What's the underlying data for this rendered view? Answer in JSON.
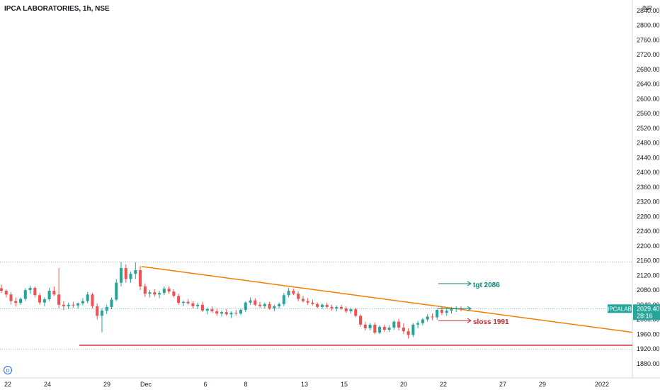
{
  "chart_data": {
    "type": "candlestick",
    "title": "IPCA LABORATORIES, 1h, NSE",
    "currency": "INR",
    "symbol": "IPCALAB",
    "last_price": "2029.40",
    "countdown": "28:16",
    "y_ticks": [
      "2840.00",
      "2800.00",
      "2760.00",
      "2720.00",
      "2680.00",
      "2640.00",
      "2600.00",
      "2560.00",
      "2520.00",
      "2480.00",
      "2440.00",
      "2400.00",
      "2360.00",
      "2320.00",
      "2280.00",
      "2240.00",
      "2200.00",
      "2160.00",
      "2120.00",
      "2080.00",
      "2040.00",
      "2000.00",
      "1960.00",
      "1920.00",
      "1880.00"
    ],
    "x_ticks": [
      "22",
      "24",
      "29",
      "Dec",
      "6",
      "8",
      "13",
      "15",
      "20",
      "22",
      "27",
      "29",
      "2022"
    ],
    "ylim": [
      1850,
      2850
    ],
    "annotations": {
      "target": "tgt 2086",
      "stoploss": "sloss 1991"
    },
    "levels": {
      "resistance_dotted": 2156,
      "support": 1928,
      "current": 2029.4
    },
    "trendline": {
      "from_price": 2144,
      "to_price": 1965
    },
    "colors": {
      "up": "#26a69a",
      "down": "#ef5350",
      "trendline": "#f57c00",
      "support": "#c62828",
      "target": "#00897b",
      "stoploss": "#c62828",
      "badge": "#26a69a"
    },
    "candles": [
      [
        2085,
        2095,
        2072,
        2078
      ],
      [
        2078,
        2082,
        2060,
        2068
      ],
      [
        2068,
        2075,
        2040,
        2050
      ],
      [
        2050,
        2060,
        2035,
        2045
      ],
      [
        2045,
        2060,
        2040,
        2056
      ],
      [
        2056,
        2085,
        2050,
        2080
      ],
      [
        2080,
        2092,
        2070,
        2086
      ],
      [
        2086,
        2090,
        2060,
        2066
      ],
      [
        2066,
        2072,
        2040,
        2046
      ],
      [
        2046,
        2060,
        2036,
        2055
      ],
      [
        2055,
        2086,
        2050,
        2078
      ],
      [
        2078,
        2090,
        2064,
        2068
      ],
      [
        2068,
        2140,
        2030,
        2040
      ],
      [
        2040,
        2050,
        2025,
        2036
      ],
      [
        2036,
        2046,
        2028,
        2040
      ],
      [
        2040,
        2048,
        2032,
        2038
      ],
      [
        2038,
        2046,
        2030,
        2044
      ],
      [
        2044,
        2058,
        2038,
        2050
      ],
      [
        2050,
        2075,
        2044,
        2068
      ],
      [
        2068,
        2072,
        2030,
        2036
      ],
      [
        2036,
        2044,
        2000,
        2010
      ],
      [
        2010,
        2030,
        1965,
        2024
      ],
      [
        2024,
        2040,
        2015,
        2034
      ],
      [
        2034,
        2060,
        2028,
        2054
      ],
      [
        2054,
        2110,
        2050,
        2100
      ],
      [
        2100,
        2156,
        2090,
        2140
      ],
      [
        2140,
        2150,
        2100,
        2110
      ],
      [
        2110,
        2130,
        2100,
        2124
      ],
      [
        2124,
        2156,
        2110,
        2134
      ],
      [
        2134,
        2145,
        2080,
        2090
      ],
      [
        2090,
        2098,
        2062,
        2070
      ],
      [
        2070,
        2080,
        2060,
        2074
      ],
      [
        2074,
        2082,
        2062,
        2068
      ],
      [
        2068,
        2078,
        2058,
        2072
      ],
      [
        2072,
        2090,
        2066,
        2084
      ],
      [
        2084,
        2090,
        2070,
        2076
      ],
      [
        2076,
        2082,
        2060,
        2064
      ],
      [
        2064,
        2070,
        2040,
        2045
      ],
      [
        2045,
        2052,
        2036,
        2048
      ],
      [
        2048,
        2056,
        2040,
        2044
      ],
      [
        2044,
        2050,
        2030,
        2036
      ],
      [
        2036,
        2046,
        2028,
        2040
      ],
      [
        2040,
        2048,
        2020,
        2024
      ],
      [
        2024,
        2032,
        2014,
        2028
      ],
      [
        2028,
        2036,
        2018,
        2022
      ],
      [
        2022,
        2030,
        2010,
        2016
      ],
      [
        2016,
        2024,
        2008,
        2020
      ],
      [
        2020,
        2028,
        2010,
        2014
      ],
      [
        2014,
        2022,
        2004,
        2018
      ],
      [
        2018,
        2026,
        2010,
        2016
      ],
      [
        2016,
        2030,
        2012,
        2026
      ],
      [
        2026,
        2050,
        2020,
        2046
      ],
      [
        2046,
        2060,
        2040,
        2052
      ],
      [
        2052,
        2058,
        2036,
        2040
      ],
      [
        2040,
        2048,
        2032,
        2036
      ],
      [
        2036,
        2046,
        2030,
        2042
      ],
      [
        2042,
        2048,
        2026,
        2030
      ],
      [
        2030,
        2040,
        2022,
        2036
      ],
      [
        2036,
        2046,
        2030,
        2042
      ],
      [
        2042,
        2072,
        2036,
        2066
      ],
      [
        2066,
        2086,
        2060,
        2078
      ],
      [
        2078,
        2084,
        2066,
        2070
      ],
      [
        2070,
        2076,
        2050,
        2056
      ],
      [
        2056,
        2064,
        2046,
        2050
      ],
      [
        2050,
        2058,
        2040,
        2046
      ],
      [
        2046,
        2054,
        2038,
        2042
      ],
      [
        2042,
        2046,
        2030,
        2034
      ],
      [
        2034,
        2044,
        2028,
        2040
      ],
      [
        2040,
        2046,
        2030,
        2034
      ],
      [
        2034,
        2040,
        2024,
        2030
      ],
      [
        2030,
        2038,
        2022,
        2034
      ],
      [
        2034,
        2040,
        2026,
        2030
      ],
      [
        2030,
        2036,
        2018,
        2022
      ],
      [
        2022,
        2032,
        2016,
        2028
      ],
      [
        2028,
        2032,
        2006,
        2010
      ],
      [
        2010,
        2014,
        1980,
        1986
      ],
      [
        1986,
        1994,
        1970,
        1976
      ],
      [
        1976,
        1990,
        1970,
        1986
      ],
      [
        1986,
        1992,
        1960,
        1964
      ],
      [
        1964,
        1984,
        1960,
        1980
      ],
      [
        1980,
        1986,
        1966,
        1972
      ],
      [
        1972,
        1984,
        1966,
        1978
      ],
      [
        1978,
        1998,
        1972,
        1994
      ],
      [
        1994,
        2002,
        1970,
        1978
      ],
      [
        1978,
        1990,
        1960,
        1968
      ],
      [
        1968,
        1976,
        1948,
        1958
      ],
      [
        1958,
        1990,
        1952,
        1986
      ],
      [
        1986,
        1996,
        1976,
        1990
      ],
      [
        1990,
        2004,
        1984,
        2000
      ],
      [
        2000,
        2014,
        1994,
        2008
      ],
      [
        2008,
        2016,
        1998,
        2006
      ],
      [
        2006,
        2030,
        2000,
        2026
      ],
      [
        2026,
        2034,
        2012,
        2018
      ],
      [
        2018,
        2030,
        2010,
        2024
      ],
      [
        2024,
        2034,
        2016,
        2028
      ],
      [
        2028,
        2036,
        2020,
        2030
      ],
      [
        2030,
        2036,
        2022,
        2029
      ]
    ]
  }
}
